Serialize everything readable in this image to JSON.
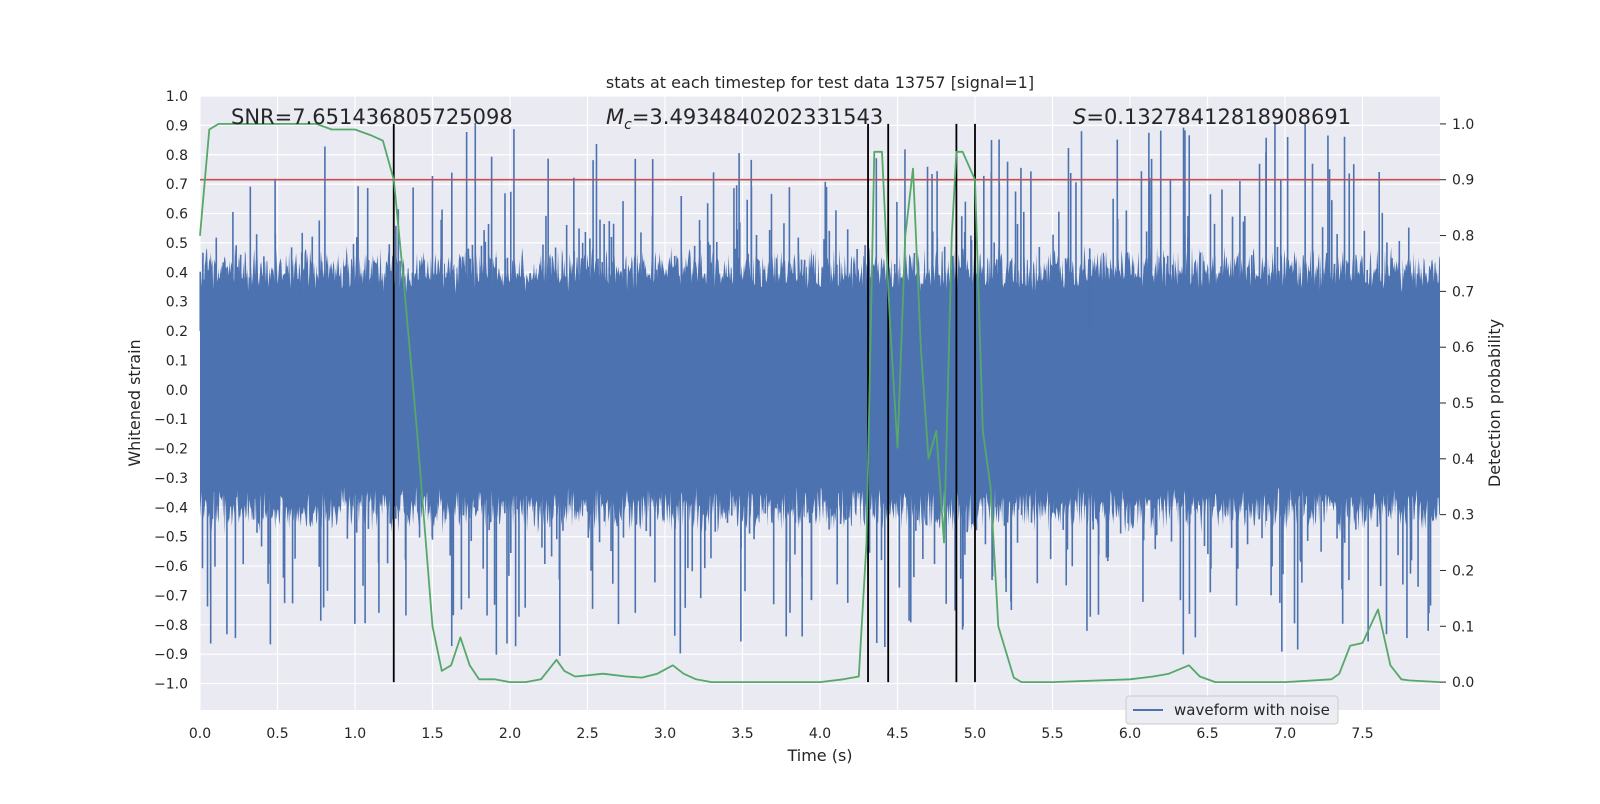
{
  "chart_data": {
    "type": "line",
    "title": "stats at each timestep for test data 13757 [signal=1]",
    "xlabel": "Time (s)",
    "ylabel": "Whitened strain",
    "y2label": "Detection probability",
    "xlim": [
      0,
      8
    ],
    "ylim": [
      -1.09,
      1.0
    ],
    "y2lim": [
      -0.05,
      1.05
    ],
    "xticks": [
      0.0,
      0.5,
      1.0,
      1.5,
      2.0,
      2.5,
      3.0,
      3.5,
      4.0,
      4.5,
      5.0,
      5.5,
      6.0,
      6.5,
      7.0,
      7.5
    ],
    "xtick_labels": [
      "0.0",
      "0.5",
      "1.0",
      "1.5",
      "2.0",
      "2.5",
      "3.0",
      "3.5",
      "4.0",
      "4.5",
      "5.0",
      "5.5",
      "6.0",
      "6.5",
      "7.0",
      "7.5"
    ],
    "yticks": [
      1.0,
      0.9,
      0.8,
      0.7,
      0.6,
      0.5,
      0.4,
      0.3,
      0.2,
      0.1,
      0.0,
      -0.1,
      -0.2,
      -0.3,
      -0.4,
      -0.5,
      -0.6,
      -0.7,
      -0.8,
      -0.9,
      -1.0
    ],
    "ytick_labels": [
      "1.0",
      "0.9",
      "0.8",
      "0.7",
      "0.6",
      "0.5",
      "0.4",
      "0.3",
      "0.2",
      "0.1",
      "0.0",
      "−0.1",
      "−0.2",
      "−0.3",
      "−0.4",
      "−0.5",
      "−0.6",
      "−0.7",
      "−0.8",
      "−0.9",
      "−1.0"
    ],
    "y2ticks": [
      1.0,
      0.9,
      0.8,
      0.7,
      0.6,
      0.5,
      0.4,
      0.3,
      0.2,
      0.1,
      0.0
    ],
    "y2tick_labels": [
      "1.0",
      "0.9",
      "0.8",
      "0.7",
      "0.6",
      "0.5",
      "0.4",
      "0.3",
      "0.2",
      "0.1",
      "0.0"
    ],
    "annotations": {
      "snr": "SNR=7.651436805725098",
      "mc_symbol": "M",
      "mc_sub": "c",
      "mc_value": "=3.4934840202331543",
      "s_symbol": "S",
      "s_value": "=0.13278412818908691"
    },
    "threshold": {
      "value": 0.9,
      "axis": "right",
      "color": "#c44e52"
    },
    "vertical_markers": [
      1.25,
      4.31,
      4.44,
      4.88,
      5.0
    ],
    "legend": {
      "label": "waveform with noise",
      "position": "lower-right",
      "color": "#4c72b0"
    },
    "series": [
      {
        "name": "waveform with noise",
        "axis": "left",
        "color": "#4c72b0",
        "style": "dense noise, bulk amplitude about ±0.35, peaks near ±0.9",
        "sample_count": 1600,
        "bulk_amplitude": 0.35,
        "peak_amplitude": 0.92
      },
      {
        "name": "Detection probability",
        "axis": "right",
        "color": "#55a868",
        "x": [
          0.0,
          0.06,
          0.12,
          0.25,
          0.5,
          0.75,
          0.85,
          1.0,
          1.1,
          1.18,
          1.25,
          1.32,
          1.4,
          1.5,
          1.56,
          1.62,
          1.68,
          1.74,
          1.8,
          1.9,
          2.0,
          2.1,
          2.2,
          2.3,
          2.35,
          2.42,
          2.5,
          2.6,
          2.75,
          2.85,
          2.95,
          3.05,
          3.12,
          3.2,
          3.3,
          3.5,
          4.0,
          4.15,
          4.25,
          4.3,
          4.35,
          4.4,
          4.45,
          4.5,
          4.55,
          4.6,
          4.65,
          4.7,
          4.75,
          4.8,
          4.85,
          4.88,
          4.92,
          5.0,
          5.05,
          5.1,
          5.15,
          5.25,
          5.3,
          5.35,
          5.5,
          6.0,
          6.15,
          6.25,
          6.38,
          6.45,
          6.55,
          6.7,
          7.0,
          7.3,
          7.35,
          7.42,
          7.5,
          7.6,
          7.68,
          7.75,
          7.8,
          8.0
        ],
        "values": [
          0.8,
          0.99,
          1.0,
          1.0,
          1.0,
          1.0,
          0.99,
          0.99,
          0.98,
          0.97,
          0.9,
          0.7,
          0.45,
          0.1,
          0.02,
          0.03,
          0.08,
          0.03,
          0.005,
          0.005,
          0.0,
          0.0,
          0.005,
          0.04,
          0.02,
          0.01,
          0.012,
          0.015,
          0.01,
          0.008,
          0.015,
          0.03,
          0.015,
          0.005,
          0.0,
          0.0,
          0.0,
          0.005,
          0.01,
          0.25,
          0.95,
          0.95,
          0.65,
          0.42,
          0.8,
          0.92,
          0.6,
          0.4,
          0.45,
          0.25,
          0.8,
          0.95,
          0.95,
          0.9,
          0.45,
          0.35,
          0.1,
          0.008,
          0.0,
          0.0,
          0.0,
          0.005,
          0.01,
          0.015,
          0.03,
          0.01,
          0.0,
          0.0,
          0.0,
          0.005,
          0.015,
          0.065,
          0.07,
          0.13,
          0.03,
          0.005,
          0.003,
          0.0
        ]
      }
    ]
  }
}
